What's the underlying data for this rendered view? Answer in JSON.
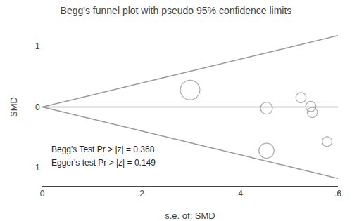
{
  "chart_data": {
    "type": "scatter",
    "title": "Begg's funnel plot with pseudo 95% confidence limits",
    "x_label": "s.e. of: SMD",
    "y_label": "SMD",
    "xlim": [
      0,
      0.6
    ],
    "ylim": [
      -1.3,
      1.3
    ],
    "xticks": [
      0,
      {
        "value": 0.2,
        "label": ".2"
      },
      {
        "value": 0.4,
        "label": ".4"
      },
      {
        "value": 0.6,
        "label": ".6"
      }
    ],
    "yticks": [
      -1,
      0,
      1
    ],
    "grid": false,
    "series": [
      {
        "type": "line",
        "color": "#999999",
        "x": [
          0,
          0.6
        ],
        "values": [
          0,
          1.176
        ]
      },
      {
        "type": "line",
        "color": "#999999",
        "x": [
          0,
          0.6
        ],
        "values": [
          0,
          -1.176
        ]
      },
      {
        "type": "hline",
        "color": "#999999",
        "y": 0
      },
      {
        "type": "scatter",
        "marker": "open circle",
        "color": "#888888",
        "x": [
          0.3,
          0.455,
          0.525,
          0.545,
          0.548,
          0.578,
          0.455
        ],
        "values": [
          0.28,
          -0.02,
          0.155,
          0.01,
          -0.09,
          -0.57,
          -0.72
        ],
        "sizes": [
          200,
          75,
          55,
          55,
          55,
          50,
          120
        ]
      }
    ],
    "annotations": [
      {
        "text": "Begg's Test Pr > |z| = 0.368",
        "x": 0.015,
        "y": -0.6
      },
      {
        "text": "Egger's test Pr > |z| = 0.149",
        "x": 0.015,
        "y": -0.82
      }
    ]
  }
}
